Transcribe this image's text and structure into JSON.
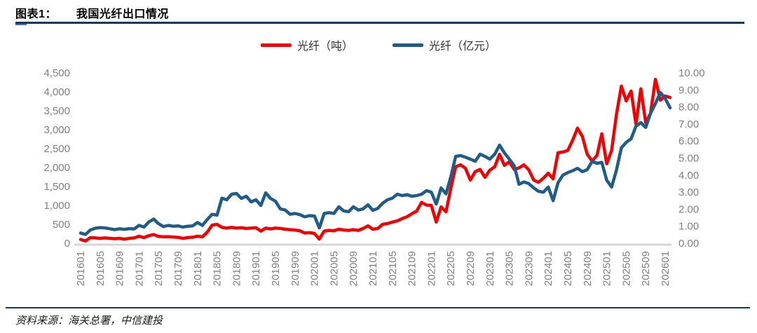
{
  "header": {
    "label": "图表1：",
    "title": "我国光纤出口情况"
  },
  "footer": {
    "source": "资料来源：海关总署，中信建投"
  },
  "colors": {
    "accent_rule": "#17375E",
    "axis_text": "#7f7f7f",
    "axis_line": "#d6d6d6",
    "series_red": "#f50000",
    "series_blue": "#1f5c8a"
  },
  "chart_data": {
    "type": "line",
    "title": "我国光纤出口情况",
    "grid": false,
    "legend_position": "top",
    "x_tick_labels": [
      "201601",
      "201605",
      "201609",
      "201701",
      "201705",
      "201709",
      "201801",
      "201805",
      "201809",
      "201901",
      "201905",
      "201909",
      "202001",
      "202005",
      "202009",
      "202101",
      "202105",
      "202109",
      "202201",
      "202205",
      "202209",
      "202301",
      "202305",
      "202309",
      "202401",
      "202405",
      "202409",
      "202501",
      "202505",
      "202509",
      "202601"
    ],
    "x_tick_step_months": 4,
    "start_month": "2016-01",
    "left_axis": {
      "min": 0,
      "max": 4500,
      "tick_labels": [
        "0",
        "500",
        "1,000",
        "1,500",
        "2,000",
        "2,500",
        "3,000",
        "3,500",
        "4,000",
        "4,500"
      ]
    },
    "right_axis": {
      "min": 0,
      "max": 10,
      "tick_labels": [
        "0.00",
        "1.00",
        "2.00",
        "3.00",
        "4.00",
        "5.00",
        "6.00",
        "7.00",
        "8.00",
        "9.00",
        "10.00"
      ]
    },
    "series": [
      {
        "name": "光纤（吨）",
        "axis": "left",
        "color": "#f50000",
        "values": [
          100,
          60,
          150,
          140,
          130,
          140,
          130,
          120,
          130,
          110,
          130,
          140,
          185,
          150,
          200,
          230,
          180,
          170,
          175,
          165,
          155,
          130,
          150,
          160,
          185,
          170,
          290,
          480,
          500,
          420,
          400,
          420,
          400,
          410,
          390,
          400,
          410,
          320,
          400,
          380,
          400,
          390,
          370,
          360,
          350,
          330,
          270,
          280,
          260,
          110,
          320,
          340,
          330,
          370,
          350,
          340,
          360,
          340,
          390,
          460,
          370,
          390,
          500,
          520,
          560,
          590,
          650,
          700,
          780,
          850,
          1080,
          1010,
          1000,
          560,
          960,
          830,
          1450,
          2020,
          2070,
          1980,
          1670,
          1890,
          1950,
          1740,
          1930,
          2020,
          2350,
          2060,
          2150,
          1950,
          1990,
          2070,
          1940,
          1670,
          1610,
          1720,
          1850,
          1700,
          2390,
          2410,
          2450,
          2720,
          3040,
          2820,
          2350,
          2170,
          2320,
          2890,
          2100,
          2450,
          3400,
          4150,
          3760,
          4020,
          3150,
          4080,
          3190,
          3430,
          4330,
          3780,
          3890,
          3850
        ]
      },
      {
        "name": "光纤（亿元）",
        "axis": "right",
        "color": "#1f5c8a",
        "values": [
          0.6,
          0.52,
          0.78,
          0.88,
          0.92,
          0.9,
          0.85,
          0.8,
          0.85,
          0.82,
          0.86,
          0.84,
          1.05,
          0.95,
          1.25,
          1.42,
          1.15,
          0.98,
          1.05,
          1.0,
          1.02,
          0.95,
          1.0,
          1.02,
          1.22,
          1.05,
          1.4,
          1.7,
          1.65,
          2.65,
          2.55,
          2.88,
          2.92,
          2.63,
          2.76,
          2.43,
          2.55,
          2.22,
          2.96,
          2.63,
          2.47,
          2.02,
          1.95,
          1.7,
          1.75,
          1.68,
          1.55,
          1.62,
          1.6,
          0.9,
          1.75,
          1.8,
          1.75,
          2.14,
          1.9,
          1.85,
          2.14,
          1.95,
          2.02,
          2.26,
          1.93,
          2.05,
          2.35,
          2.55,
          2.65,
          2.88,
          2.8,
          2.85,
          2.76,
          2.8,
          2.88,
          3.09,
          3.0,
          2.3,
          3.25,
          2.9,
          3.9,
          5.1,
          5.15,
          5.05,
          4.94,
          4.81,
          5.23,
          5.1,
          4.94,
          5.23,
          5.76,
          5.31,
          4.94,
          4.55,
          3.46,
          3.6,
          3.5,
          3.25,
          3.05,
          3.0,
          3.3,
          2.5,
          3.55,
          4.0,
          4.15,
          4.26,
          4.4,
          4.2,
          4.32,
          4.81,
          4.69,
          4.75,
          3.7,
          3.3,
          4.3,
          5.6,
          5.92,
          6.13,
          6.87,
          7.08,
          6.8,
          7.62,
          8.2,
          8.85,
          8.5,
          7.95
        ]
      }
    ]
  }
}
